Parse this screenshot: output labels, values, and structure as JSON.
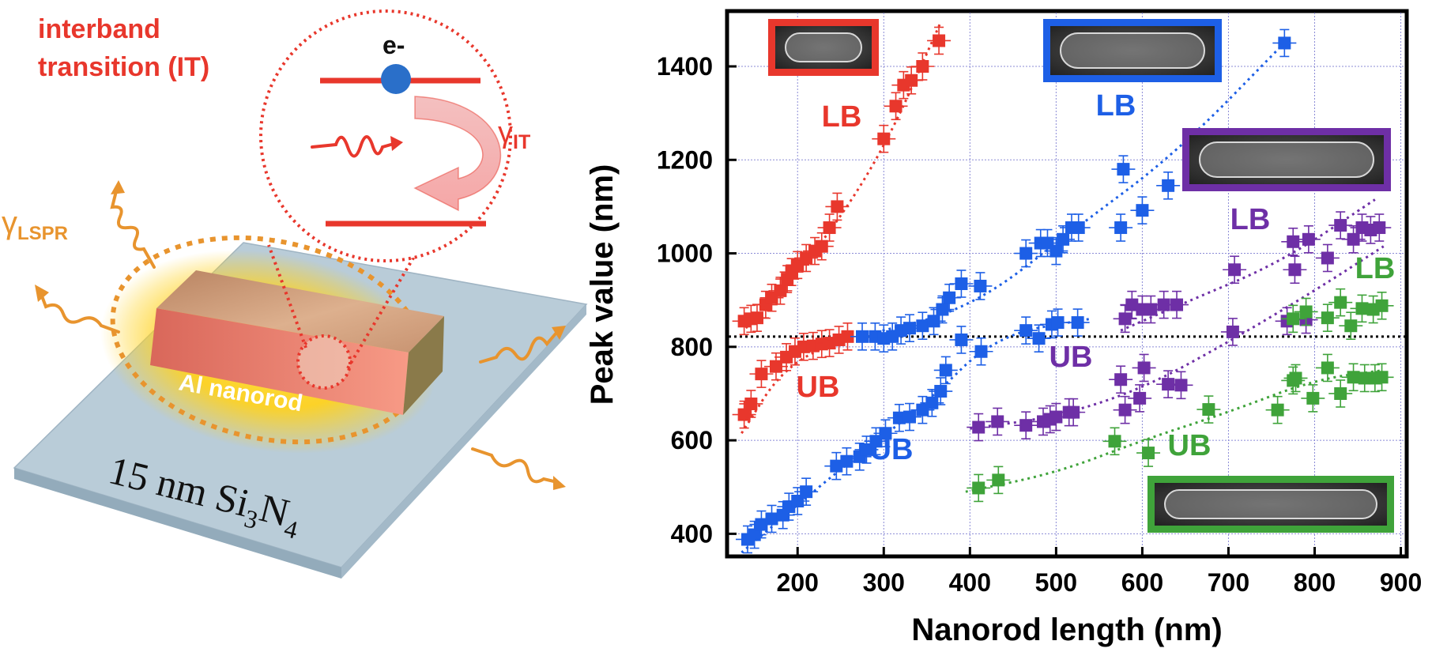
{
  "schematic": {
    "it_title_line1": "interband",
    "it_title_line2": "transition (IT)",
    "electron_label": "e-",
    "gamma_symbol": "γ",
    "gamma_it_sub": "IT",
    "gamma_lspr_sub": "LSPR",
    "nanorod_label": "Al nanorod",
    "substrate_label_prefix": "15 nm Si",
    "substrate_sub1": "3",
    "substrate_mid": "N",
    "substrate_sub2": "4",
    "colors": {
      "it_red": "#e8372c",
      "lspr_orange": "#e8942e",
      "electron_blue": "#2a6fc9",
      "substrate": "#b9ccd8",
      "rod_top": "#d6a383",
      "rod_front": "#f08a74",
      "glow": "#ffd21f"
    }
  },
  "chart_data": {
    "type": "scatter",
    "xlabel": "Nanorod length (nm)",
    "ylabel": "Peak value (nm)",
    "xlim": [
      120,
      905
    ],
    "ylim": [
      355,
      1515
    ],
    "xticks": [
      200,
      300,
      400,
      500,
      600,
      700,
      800,
      900
    ],
    "yticks": [
      400,
      600,
      800,
      1000,
      1200,
      1400
    ],
    "grid": true,
    "reference_line": {
      "y": 822,
      "style": "dotted",
      "color": "#000000"
    },
    "series": [
      {
        "color": "#e8372c",
        "label_lb": "LB",
        "label_ub": "UB",
        "lb": [
          [
            138,
            855
          ],
          [
            146,
            860
          ],
          [
            153,
            862
          ],
          [
            163,
            890
          ],
          [
            170,
            905
          ],
          [
            180,
            920
          ],
          [
            188,
            945
          ],
          [
            193,
            960
          ],
          [
            200,
            975
          ],
          [
            210,
            990
          ],
          [
            220,
            1005
          ],
          [
            228,
            1015
          ],
          [
            237,
            1055
          ],
          [
            246,
            1100
          ],
          [
            300,
            1245
          ],
          [
            314,
            1315
          ],
          [
            323,
            1360
          ],
          [
            332,
            1370
          ],
          [
            345,
            1400
          ],
          [
            364,
            1455
          ]
        ],
        "ub": [
          [
            138,
            655
          ],
          [
            146,
            678
          ],
          [
            158,
            742
          ],
          [
            175,
            758
          ],
          [
            187,
            778
          ],
          [
            197,
            790
          ],
          [
            207,
            800
          ],
          [
            218,
            802
          ],
          [
            228,
            806
          ],
          [
            237,
            808
          ],
          [
            248,
            815
          ],
          [
            258,
            822
          ]
        ],
        "fit_lb": [
          [
            140,
            840
          ],
          [
            225,
            1010
          ],
          [
            300,
            1220
          ],
          [
            365,
            1490
          ]
        ],
        "fit_ub": [
          [
            135,
            615
          ],
          [
            185,
            760
          ],
          [
            260,
            822
          ]
        ]
      },
      {
        "color": "#1d5fe6",
        "label_lb": "LB",
        "label_ub": "UB",
        "lb": [
          [
            275,
            822
          ],
          [
            290,
            822
          ],
          [
            300,
            818
          ],
          [
            310,
            822
          ],
          [
            320,
            835
          ],
          [
            330,
            840
          ],
          [
            345,
            845
          ],
          [
            358,
            855
          ],
          [
            368,
            880
          ],
          [
            376,
            905
          ],
          [
            390,
            935
          ],
          [
            412,
            930
          ],
          [
            465,
            1000
          ],
          [
            482,
            1022
          ],
          [
            490,
            1022
          ],
          [
            500,
            1005
          ],
          [
            508,
            1030
          ],
          [
            518,
            1055
          ],
          [
            526,
            1055
          ],
          [
            578,
            1180
          ],
          [
            575,
            1055
          ],
          [
            600,
            1092
          ],
          [
            630,
            1145
          ],
          [
            765,
            1450
          ]
        ],
        "ub": [
          [
            142,
            388
          ],
          [
            150,
            398
          ],
          [
            158,
            420
          ],
          [
            170,
            432
          ],
          [
            183,
            440
          ],
          [
            190,
            458
          ],
          [
            200,
            470
          ],
          [
            210,
            490
          ],
          [
            245,
            545
          ],
          [
            257,
            555
          ],
          [
            272,
            565
          ],
          [
            280,
            580
          ],
          [
            291,
            598
          ],
          [
            302,
            615
          ],
          [
            318,
            648
          ],
          [
            330,
            650
          ],
          [
            345,
            665
          ],
          [
            356,
            680
          ],
          [
            366,
            705
          ],
          [
            372,
            750
          ],
          [
            390,
            815
          ],
          [
            413,
            790
          ],
          [
            465,
            835
          ],
          [
            480,
            818
          ],
          [
            495,
            848
          ],
          [
            502,
            852
          ],
          [
            525,
            852
          ]
        ],
        "fit_lb": [
          [
            270,
            822
          ],
          [
            400,
            880
          ],
          [
            520,
            1050
          ],
          [
            640,
            1215
          ],
          [
            770,
            1460
          ]
        ],
        "fit_ub": [
          [
            135,
            360
          ],
          [
            250,
            540
          ],
          [
            350,
            680
          ],
          [
            430,
            825
          ],
          [
            540,
            860
          ]
        ]
      },
      {
        "color": "#6e2fa6",
        "label_lb": "LB",
        "label_ub": "UB",
        "lb": [
          [
            580,
            860
          ],
          [
            588,
            890
          ],
          [
            600,
            880
          ],
          [
            610,
            880
          ],
          [
            625,
            890
          ],
          [
            640,
            890
          ],
          [
            707,
            965
          ],
          [
            775,
            1025
          ],
          [
            777,
            965
          ],
          [
            793,
            1030
          ],
          [
            815,
            990
          ],
          [
            830,
            1060
          ],
          [
            845,
            1030
          ],
          [
            855,
            1055
          ],
          [
            865,
            1050
          ],
          [
            875,
            1055
          ]
        ],
        "ub": [
          [
            410,
            628
          ],
          [
            432,
            640
          ],
          [
            465,
            632
          ],
          [
            485,
            640
          ],
          [
            493,
            645
          ],
          [
            500,
            650
          ],
          [
            515,
            660
          ],
          [
            520,
            660
          ],
          [
            575,
            730
          ],
          [
            580,
            665
          ],
          [
            597,
            690
          ],
          [
            602,
            755
          ],
          [
            630,
            720
          ],
          [
            645,
            718
          ],
          [
            705,
            832
          ],
          [
            768,
            855
          ],
          [
            790,
            858
          ]
        ],
        "fit_lb": [
          [
            575,
            835
          ],
          [
            650,
            895
          ],
          [
            760,
            980
          ],
          [
            870,
            1115
          ]
        ],
        "fit_ub": [
          [
            400,
            625
          ],
          [
            500,
            650
          ],
          [
            600,
            710
          ],
          [
            700,
            810
          ],
          [
            800,
            920
          ],
          [
            880,
            1015
          ]
        ]
      },
      {
        "color": "#3fa33a",
        "label_lb": "LB",
        "label_ub": "UB",
        "lb": [
          [
            775,
            860
          ],
          [
            790,
            875
          ],
          [
            815,
            862
          ],
          [
            830,
            895
          ],
          [
            842,
            845
          ],
          [
            855,
            882
          ],
          [
            868,
            880
          ],
          [
            878,
            888
          ]
        ],
        "ub": [
          [
            410,
            498
          ],
          [
            433,
            515
          ],
          [
            568,
            598
          ],
          [
            607,
            573
          ],
          [
            677,
            666
          ],
          [
            757,
            665
          ],
          [
            775,
            728
          ],
          [
            778,
            733
          ],
          [
            798,
            690
          ],
          [
            815,
            755
          ],
          [
            830,
            700
          ],
          [
            845,
            735
          ],
          [
            858,
            733
          ],
          [
            870,
            733
          ],
          [
            878,
            735
          ]
        ],
        "fit_lb": [],
        "fit_ub": [
          [
            395,
            490
          ],
          [
            500,
            530
          ],
          [
            600,
            600
          ],
          [
            700,
            660
          ],
          [
            800,
            730
          ],
          [
            880,
            750
          ]
        ]
      }
    ],
    "insets": [
      {
        "color": "#e8372c"
      },
      {
        "color": "#1d5fe6"
      },
      {
        "color": "#6e2fa6"
      },
      {
        "color": "#3fa33a"
      }
    ]
  }
}
